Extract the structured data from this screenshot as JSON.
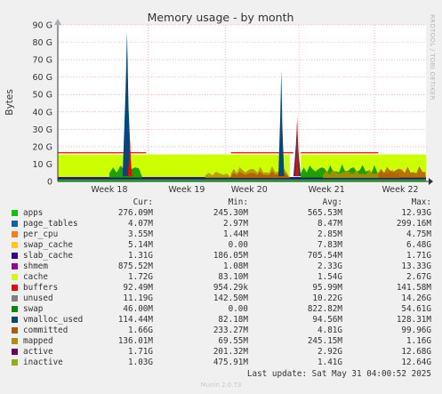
{
  "chart_data": {
    "type": "area",
    "title": "Memory usage - by month",
    "ylabel": "Bytes",
    "xlabel": "",
    "ylim": [
      0,
      90
    ],
    "y_unit": "G",
    "y_ticks": [
      "0",
      "10 G",
      "20 G",
      "30 G",
      "40 G",
      "50 G",
      "60 G",
      "70 G",
      "80 G",
      "90 G"
    ],
    "x_ticks": [
      "Week 18",
      "Week 19",
      "Week 20",
      "Week 21",
      "Week 22"
    ],
    "grid": true,
    "series": [
      {
        "name": "apps",
        "color": "#00cc00"
      },
      {
        "name": "page_tables",
        "color": "#0066b3"
      },
      {
        "name": "per_cpu",
        "color": "#ff8000"
      },
      {
        "name": "swap_cache",
        "color": "#ffcc00"
      },
      {
        "name": "slab_cache",
        "color": "#330099"
      },
      {
        "name": "shmem",
        "color": "#990099"
      },
      {
        "name": "cache",
        "color": "#ccff00"
      },
      {
        "name": "buffers",
        "color": "#ff0000"
      },
      {
        "name": "unused",
        "color": "#808080"
      },
      {
        "name": "swap",
        "color": "#008f00"
      },
      {
        "name": "vmalloc_used",
        "color": "#00487d"
      },
      {
        "name": "committed",
        "color": "#b35a00"
      },
      {
        "name": "mapped",
        "color": "#b38f00"
      },
      {
        "name": "active",
        "color": "#6b006b"
      },
      {
        "name": "inactive",
        "color": "#8fb300"
      }
    ],
    "approx_levels_g": {
      "cache_band": 15.5,
      "swap_line": 16.5,
      "committed_peaks": [
        86,
        64,
        35
      ]
    }
  },
  "legend": {
    "headers": {
      "cur": "Cur:",
      "min": "Min:",
      "avg": "Avg:",
      "max": "Max:"
    },
    "rows": [
      {
        "name": "apps",
        "color": "#00cc00",
        "cur": "276.09M",
        "min": "245.30M",
        "avg": "565.53M",
        "max": "12.93G"
      },
      {
        "name": "page_tables",
        "color": "#0066b3",
        "cur": "4.07M",
        "min": "2.97M",
        "avg": "8.47M",
        "max": "299.16M"
      },
      {
        "name": "per_cpu",
        "color": "#ff8000",
        "cur": "3.55M",
        "min": "1.44M",
        "avg": "2.85M",
        "max": "4.75M"
      },
      {
        "name": "swap_cache",
        "color": "#ffcc00",
        "cur": "5.14M",
        "min": "0.00",
        "avg": "7.83M",
        "max": "6.48G"
      },
      {
        "name": "slab_cache",
        "color": "#330099",
        "cur": "1.31G",
        "min": "186.05M",
        "avg": "705.54M",
        "max": "1.71G"
      },
      {
        "name": "shmem",
        "color": "#990099",
        "cur": "875.52M",
        "min": "1.08M",
        "avg": "2.33G",
        "max": "13.33G"
      },
      {
        "name": "cache",
        "color": "#ccff00",
        "cur": "1.72G",
        "min": "83.10M",
        "avg": "1.54G",
        "max": "2.67G"
      },
      {
        "name": "buffers",
        "color": "#ff0000",
        "cur": "92.49M",
        "min": "954.29k",
        "avg": "95.99M",
        "max": "141.58M"
      },
      {
        "name": "unused",
        "color": "#808080",
        "cur": "11.19G",
        "min": "142.50M",
        "avg": "10.22G",
        "max": "14.26G"
      },
      {
        "name": "swap",
        "color": "#008f00",
        "cur": "46.00M",
        "min": "0.00",
        "avg": "822.82M",
        "max": "54.61G"
      },
      {
        "name": "vmalloc_used",
        "color": "#00487d",
        "cur": "114.44M",
        "min": "82.18M",
        "avg": "94.56M",
        "max": "128.31M"
      },
      {
        "name": "committed",
        "color": "#b35a00",
        "cur": "1.66G",
        "min": "233.27M",
        "avg": "4.81G",
        "max": "99.96G"
      },
      {
        "name": "mapped",
        "color": "#b38f00",
        "cur": "136.01M",
        "min": "69.55M",
        "avg": "245.15M",
        "max": "1.16G"
      },
      {
        "name": "active",
        "color": "#6b006b",
        "cur": "1.71G",
        "min": "201.32M",
        "avg": "2.92G",
        "max": "12.68G"
      },
      {
        "name": "inactive",
        "color": "#8fb300",
        "cur": "1.03G",
        "min": "475.91M",
        "avg": "1.41G",
        "max": "12.64G"
      }
    ]
  },
  "last_update": "Last update: Sat May 31 04:00:52 2025",
  "footer": "Munin 2.0.73",
  "rrd_credit": "RRDTOOL / TOBI OETIKER"
}
